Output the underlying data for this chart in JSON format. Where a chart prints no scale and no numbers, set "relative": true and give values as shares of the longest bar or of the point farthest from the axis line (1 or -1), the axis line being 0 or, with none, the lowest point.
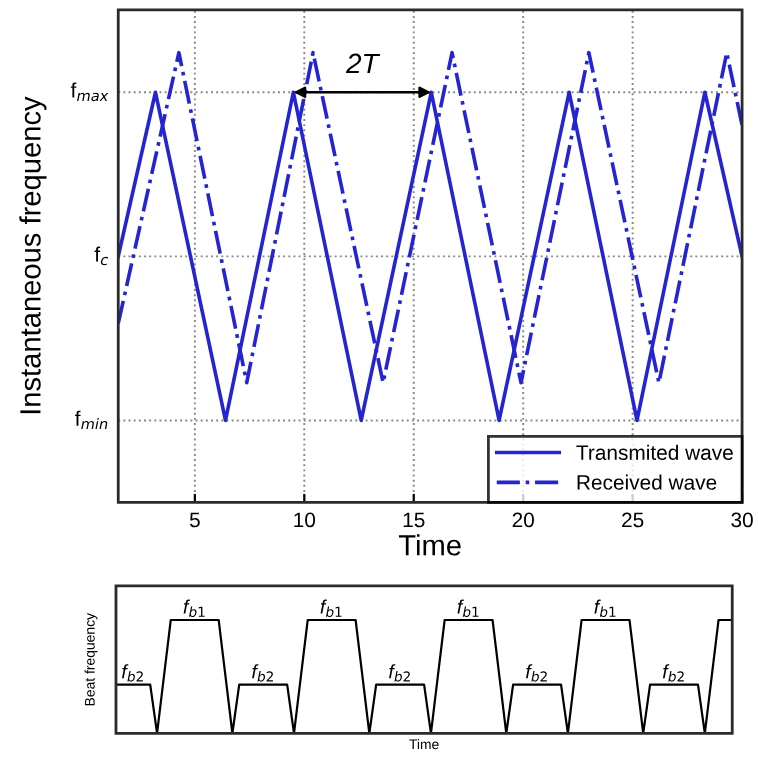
{
  "chart_data": [
    {
      "type": "line",
      "relative": true,
      "xlabel": "Time",
      "ylabel": "Instantaneous frequency",
      "xlim": [
        1.5,
        30
      ],
      "xticks": [
        5,
        10,
        15,
        20,
        25,
        30
      ],
      "ref_lines": [
        {
          "axis": "y",
          "value": 0.182,
          "label": "f$_{min}$",
          "color": "#888888",
          "line_style": "dotted"
        },
        {
          "axis": "y",
          "value": 0.547,
          "label": "f$_{c}$",
          "color": "#888888",
          "line_style": "dotted"
        },
        {
          "axis": "y",
          "value": 0.912,
          "label": "f$_{max}$",
          "color": "#888888",
          "line_style": "dotted"
        }
      ],
      "grid": "x",
      "legend": "bottom right",
      "annotations": [
        "2T"
      ],
      "series": [
        {
          "name": "Transmited wave",
          "color": "#2424d0",
          "line_style": "solid",
          "x": [
            1.5,
            3.2,
            6.4,
            9.5,
            12.6,
            15.8,
            18.9,
            22.1,
            25.2,
            28.3,
            30
          ],
          "values": [
            0.547,
            0.912,
            0.182,
            0.912,
            0.182,
            0.912,
            0.182,
            0.912,
            0.182,
            0.912,
            0.547
          ]
        },
        {
          "name": "Received wave",
          "color": "#2424d0",
          "line_style": "dashdot",
          "x": [
            1.5,
            4.27,
            7.37,
            10.4,
            13.6,
            16.75,
            19.9,
            23.0,
            26.2,
            29.3,
            30
          ],
          "values": [
            0.398,
            1,
            0.266,
            1,
            0.266,
            1,
            0.266,
            1,
            0.266,
            1,
            0.839
          ]
        }
      ]
    },
    {
      "type": "line",
      "relative": true,
      "xlabel": "Time",
      "ylabel": "Beat frequency",
      "categories": [
        null,
        null,
        null,
        null,
        null,
        null,
        null,
        null,
        null,
        null,
        null,
        null,
        null,
        null,
        null,
        null,
        null,
        null,
        null,
        null,
        null,
        null,
        null,
        null,
        null,
        null,
        null,
        null,
        null,
        null,
        null,
        null,
        null,
        null,
        null,
        null,
        null,
        null,
        null,
        null,
        null,
        null,
        null,
        null,
        null,
        null,
        null,
        null,
        null,
        null,
        null,
        null,
        null,
        null,
        null,
        null,
        null,
        null,
        null,
        null,
        null,
        null,
        null,
        null,
        null,
        null,
        null,
        null,
        null,
        null,
        null,
        null,
        null,
        null,
        null,
        null,
        null,
        null,
        null,
        null,
        null,
        null,
        null,
        null,
        null,
        null,
        null,
        null,
        null,
        null,
        null
      ],
      "annotations": [
        "f$_{b2}$",
        "f$_{b1}$",
        "f$_{b2}$",
        "f$_{b1}$",
        "f$_{b2}$",
        "f$_{b1}$",
        "f$_{b2}$",
        "f$_{b1}$",
        "f$_{b2}$"
      ],
      "series": [
        {
          "color": "#000000",
          "values": [
            0.43,
            0.43,
            0.43,
            0.43,
            0.43,
            0.43,
            0,
            0.5,
            1,
            1,
            1,
            1,
            1,
            1,
            1,
            1,
            0.5,
            0,
            0.43,
            0.43,
            0.43,
            0.43,
            0.43,
            0.43,
            0.43,
            0.43,
            0,
            0.5,
            1,
            1,
            1,
            1,
            1,
            1,
            1,
            1,
            0.5,
            0,
            0.43,
            0.43,
            0.43,
            0.43,
            0.43,
            0.43,
            0.43,
            0.43,
            0,
            0.5,
            1,
            1,
            1,
            1,
            1,
            1,
            1,
            1,
            0.5,
            0,
            0.43,
            0.43,
            0.43,
            0.43,
            0.43,
            0.43,
            0.43,
            0.43,
            0,
            0.5,
            1,
            1,
            1,
            1,
            1,
            1,
            1,
            1,
            0.5,
            0,
            0.43,
            0.43,
            0.43,
            0.43,
            0.43,
            0.43,
            0.43,
            0.43,
            0,
            0.5,
            1,
            1,
            1
          ]
        }
      ]
    }
  ]
}
